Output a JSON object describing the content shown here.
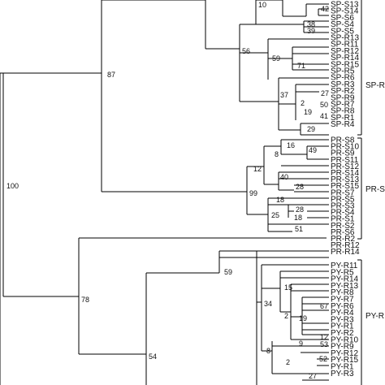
{
  "tree": {
    "groups": [
      "SP-R",
      "PR-S",
      "PY-R"
    ],
    "leaves": {
      "sp": [
        "SP-S13",
        "SP-S14",
        "SP-S6",
        "SP-S4",
        "SP-S5",
        "SP-R13",
        "SP-R11",
        "SP-R12",
        "SP-R14",
        "SP-R15",
        "SP-R5",
        "SP-R6",
        "SP-R3",
        "SP-R2",
        "SP-R9",
        "SP-R7",
        "SP-R8",
        "SP-R1",
        "SP-R4"
      ],
      "pr": [
        "PR-S8",
        "PR-S10",
        "PR-S9",
        "PR-S11",
        "PR-S12",
        "PR-S14",
        "PR-S13",
        "PR-S15",
        "PR-S7",
        "PR-S5",
        "PR-S3",
        "PR-S4",
        "PR-S1",
        "PR-S2",
        "PR-S6",
        "PR-R2",
        "PR-R12",
        "PR-R14"
      ],
      "py": [
        "PY-R11",
        "PY-R5",
        "PY-R14",
        "PY-R13",
        "PY-R8",
        "PY-R7",
        "PY-R6",
        "PY-R4",
        "PY-R3",
        "PY-R1",
        "PY-R2",
        "PY-R10",
        "PY-R9",
        "PY-R12",
        "PY-R15",
        "PY-R1",
        "PY-R3"
      ]
    },
    "bootstrap": {
      "root": "100",
      "sp_clade": "87",
      "sp_top": "10",
      "sp_mid": "56",
      "s13": "42",
      "s6": "38",
      "s4": "39",
      "r11": "59",
      "r14": "71",
      "sp_r": "37",
      "r3": "27",
      "r2": "2",
      "r9": "50",
      "r7": "19",
      "r8": "41",
      "r1": "29",
      "pr_clade": "99",
      "pr_top": "12",
      "pr_s8": "16",
      "pr_s10": "8",
      "pr_s9": "49",
      "pr_s14": "40",
      "pr_s15": "28",
      "pr_s7": "18",
      "pr_s5": "25",
      "pr_s4": "28",
      "pr_s3": "18",
      "pr_s2": "51",
      "lower": "78",
      "py_top": "59",
      "py_b": "34",
      "py_c": "15",
      "py_d": "2",
      "py_e": "67",
      "py_f": "19",
      "py_g": "12",
      "py_h": "53",
      "py_i": "9",
      "py_j": "2",
      "py_k": "8",
      "py_l": "54",
      "py_m": "52",
      "py_n": "27"
    }
  }
}
